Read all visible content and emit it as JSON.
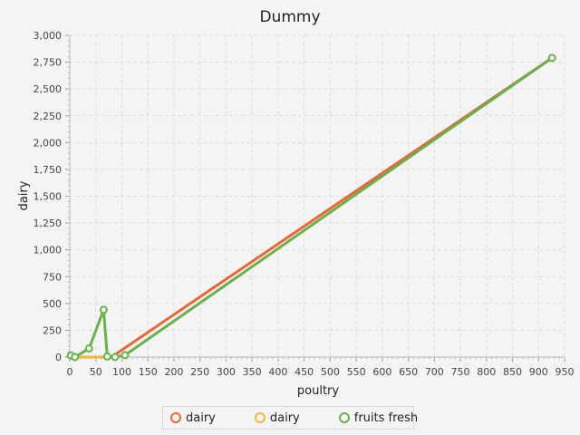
{
  "chart_data": {
    "type": "line",
    "title": "Dummy",
    "xlabel": "poultry",
    "ylabel": "dairy",
    "xlim": [
      0,
      950
    ],
    "ylim": [
      0,
      3000
    ],
    "x_ticks": [
      "0",
      "50",
      "100",
      "150",
      "200",
      "250",
      "300",
      "350",
      "400",
      "450",
      "500",
      "550",
      "600",
      "650",
      "700",
      "750",
      "800",
      "850",
      "900",
      "950"
    ],
    "y_ticks": [
      "0",
      "250",
      "500",
      "750",
      "1,000",
      "1,250",
      "1,500",
      "1,750",
      "2,000",
      "2,250",
      "2,500",
      "2,750",
      "3,000"
    ],
    "grid": true,
    "legend_position": "bottom",
    "series": [
      {
        "name": "dairy",
        "color": "#e8663a",
        "markers": false,
        "points": [
          [
            80,
            0
          ],
          [
            926,
            2790
          ]
        ]
      },
      {
        "name": "dairy",
        "color": "#f2b83a",
        "markers": false,
        "points": [
          [
            0,
            0
          ],
          [
            80,
            0
          ]
        ]
      },
      {
        "name": "fruits fresh",
        "color": "#6ab04c",
        "markers": true,
        "points": [
          [
            2,
            15
          ],
          [
            10,
            0
          ],
          [
            37,
            80
          ],
          [
            65,
            440
          ],
          [
            72,
            5
          ],
          [
            87,
            0
          ],
          [
            106,
            18
          ],
          [
            926,
            2790
          ]
        ]
      }
    ]
  }
}
